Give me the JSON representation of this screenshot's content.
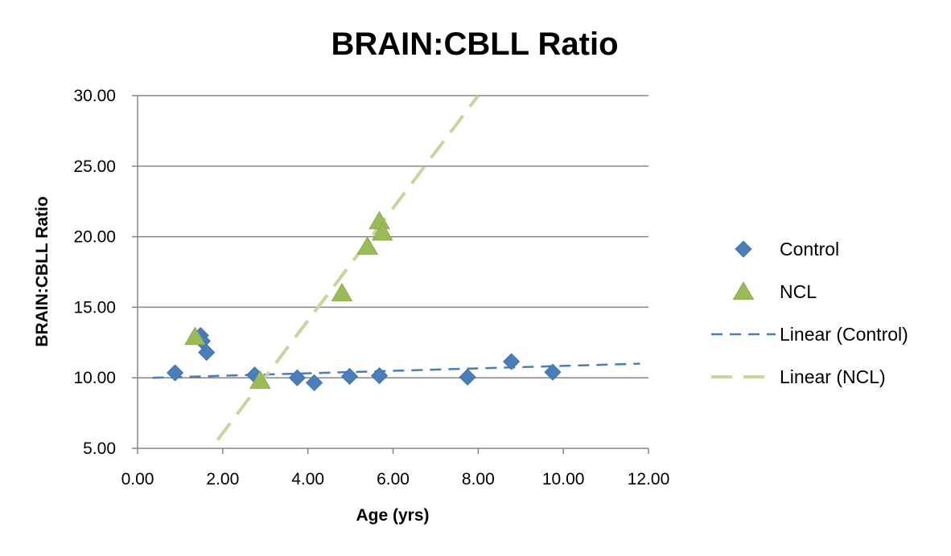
{
  "chart_data": {
    "type": "scatter",
    "title": "BRAIN:CBLL Ratio",
    "xlabel": "Age (yrs)",
    "ylabel": "BRAIN:CBLL Ratio",
    "xlim": [
      0,
      12
    ],
    "ylim": [
      5,
      30
    ],
    "x_ticks": [
      "0.00",
      "2.00",
      "4.00",
      "6.00",
      "8.00",
      "10.00",
      "12.00"
    ],
    "y_ticks": [
      "5.00",
      "10.00",
      "15.00",
      "20.00",
      "25.00",
      "30.00"
    ],
    "grid": "horizontal",
    "legend_position": "right",
    "series": [
      {
        "name": "Control",
        "marker": "diamond",
        "color": "#4a7ebb",
        "points": [
          {
            "x": 0.88,
            "y": 10.35
          },
          {
            "x": 1.48,
            "y": 13.0
          },
          {
            "x": 1.52,
            "y": 12.6
          },
          {
            "x": 1.62,
            "y": 11.8
          },
          {
            "x": 2.75,
            "y": 10.2
          },
          {
            "x": 3.75,
            "y": 10.0
          },
          {
            "x": 4.15,
            "y": 9.65
          },
          {
            "x": 4.98,
            "y": 10.1
          },
          {
            "x": 5.68,
            "y": 10.15
          },
          {
            "x": 7.75,
            "y": 10.05
          },
          {
            "x": 8.78,
            "y": 11.15
          },
          {
            "x": 9.75,
            "y": 10.4
          }
        ]
      },
      {
        "name": "NCL",
        "marker": "triangle",
        "color": "#9bbb59",
        "points": [
          {
            "x": 1.35,
            "y": 12.9
          },
          {
            "x": 2.88,
            "y": 9.8
          },
          {
            "x": 4.8,
            "y": 16.0
          },
          {
            "x": 5.4,
            "y": 19.3
          },
          {
            "x": 5.68,
            "y": 21.1
          },
          {
            "x": 5.75,
            "y": 20.3
          }
        ]
      },
      {
        "name": "Linear (Control)",
        "style": "dashed",
        "color": "#4a7ebb",
        "line": [
          {
            "x": 0.35,
            "y": 10.0
          },
          {
            "x": 11.8,
            "y": 11.0
          }
        ]
      },
      {
        "name": "Linear (NCL)",
        "style": "dashed",
        "color": "#c3d69b",
        "line": [
          {
            "x": 1.88,
            "y": 5.6
          },
          {
            "x": 8.0,
            "y": 30.0
          }
        ]
      }
    ]
  }
}
